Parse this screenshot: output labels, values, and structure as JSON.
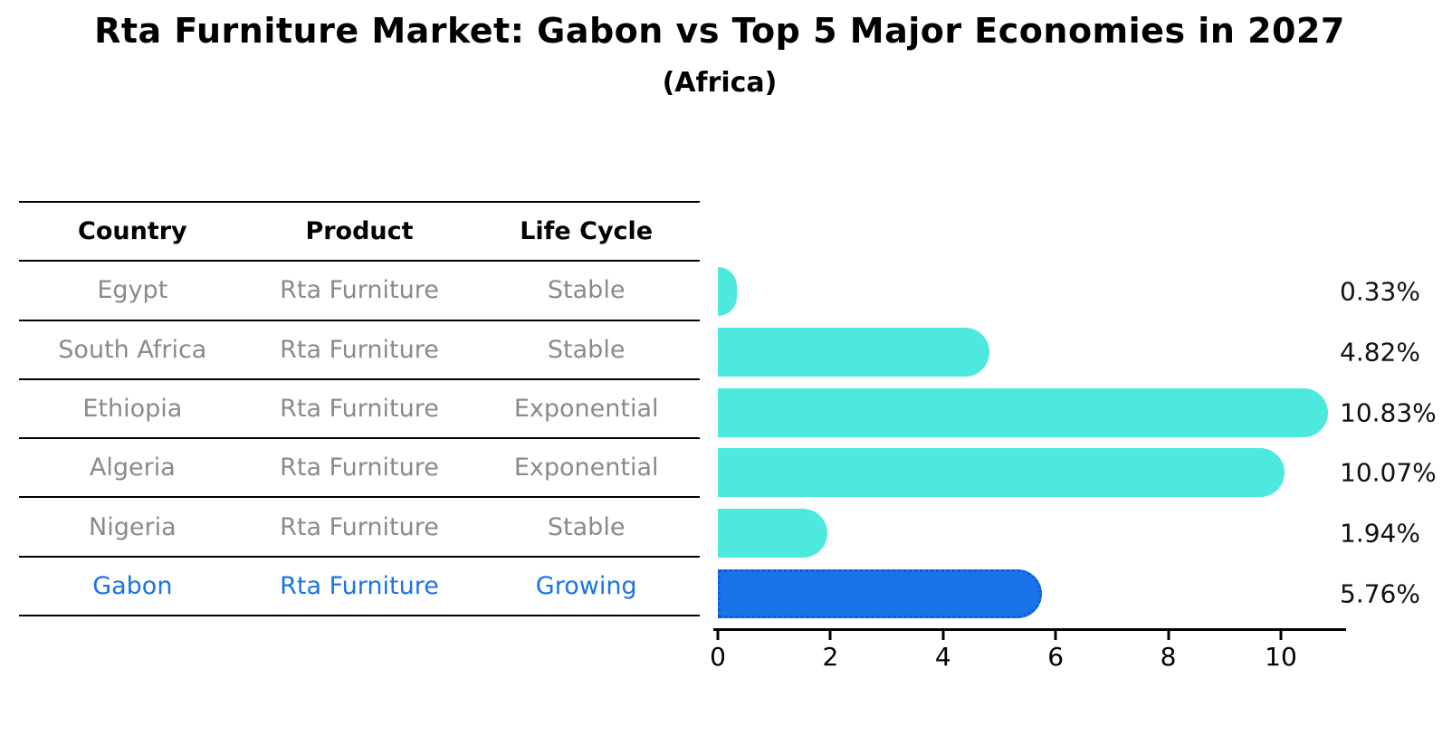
{
  "title": "Rta Furniture Market: Gabon vs Top 5 Major Economies in 2027",
  "subtitle": "(Africa)",
  "table": {
    "headers": [
      "Country",
      "Product",
      "Life Cycle"
    ],
    "rows": [
      {
        "country": "Egypt",
        "product": "Rta Furniture",
        "life_cycle": "Stable",
        "highlight": false
      },
      {
        "country": "South Africa",
        "product": "Rta Furniture",
        "life_cycle": "Stable",
        "highlight": false
      },
      {
        "country": "Ethiopia",
        "product": "Rta Furniture",
        "life_cycle": "Exponential",
        "highlight": false
      },
      {
        "country": "Algeria",
        "product": "Rta Furniture",
        "life_cycle": "Exponential",
        "highlight": false
      },
      {
        "country": "Nigeria",
        "product": "Rta Furniture",
        "life_cycle": "Stable",
        "highlight": false
      },
      {
        "country": "Gabon",
        "product": "Rta Furniture",
        "life_cycle": "Growing",
        "highlight": true
      }
    ]
  },
  "chart_data": {
    "type": "bar",
    "orientation": "horizontal",
    "title": "Rta Furniture Market: Gabon vs Top 5 Major Economies in 2027",
    "subtitle": "(Africa)",
    "categories": [
      "Egypt",
      "South Africa",
      "Ethiopia",
      "Algeria",
      "Nigeria",
      "Gabon"
    ],
    "values": [
      0.33,
      4.82,
      10.83,
      10.07,
      1.94,
      5.76
    ],
    "value_labels": [
      "0.33%",
      "4.82%",
      "10.83%",
      "10.07%",
      "1.94%",
      "5.76%"
    ],
    "highlight_index": 5,
    "x_ticks": [
      0,
      2,
      4,
      6,
      8,
      10
    ],
    "x_tick_labels": [
      "0",
      "2",
      "4",
      "6",
      "8",
      "10"
    ],
    "xlim": [
      0,
      11.2
    ],
    "grid": false,
    "legend": false,
    "bar_color": "#4de8de",
    "highlight_bar_color": "#1a73e8",
    "highlight_text_color": "#1a73e8",
    "normal_text_color": "#8a8a8a"
  }
}
